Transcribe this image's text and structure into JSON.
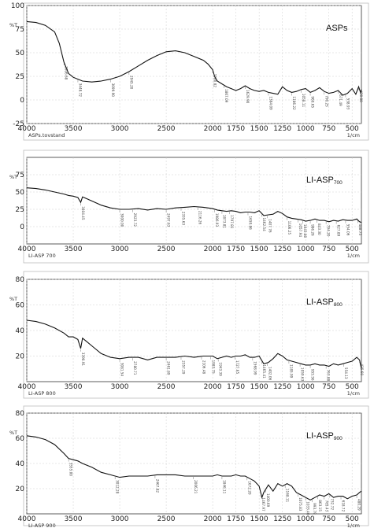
{
  "chart_data": [
    {
      "type": "line",
      "title": "ASPs",
      "title_main": "ASPs",
      "title_sub": "",
      "ylabel": "%T",
      "xunit": "1/cm",
      "sample_label": "ASPs.tovstand",
      "xlim": [
        4000,
        400
      ],
      "ylim": [
        -25,
        100
      ],
      "xticks": [
        4000,
        3500,
        3000,
        2500,
        2000,
        1750,
        1500,
        1250,
        1000,
        750,
        500
      ],
      "yticks": [
        -25,
        0,
        25,
        50,
        75,
        100
      ],
      "series": [
        {
          "name": "ASPs",
          "x": [
            4000,
            3900,
            3800,
            3700,
            3650,
            3600,
            3550,
            3500,
            3450,
            3400,
            3300,
            3200,
            3100,
            3000,
            2900,
            2800,
            2700,
            2600,
            2500,
            2400,
            2300,
            2200,
            2100,
            2050,
            2000,
            1980,
            1950,
            1900,
            1850,
            1800,
            1750,
            1700,
            1650,
            1600,
            1550,
            1500,
            1450,
            1400,
            1350,
            1300,
            1250,
            1200,
            1150,
            1100,
            1050,
            1000,
            950,
            900,
            850,
            800,
            750,
            700,
            650,
            600,
            550,
            500,
            460,
            430,
            410,
            400
          ],
          "y": [
            83,
            82,
            79,
            72,
            60,
            40,
            28,
            24,
            22,
            20,
            19,
            20,
            22,
            25,
            30,
            36,
            42,
            47,
            51,
            52,
            50,
            46,
            42,
            38,
            32,
            25,
            20,
            17,
            14,
            12,
            10,
            12,
            15,
            12,
            10,
            9,
            10,
            8,
            7,
            6,
            14,
            10,
            8,
            9,
            11,
            12,
            8,
            10,
            13,
            9,
            7,
            8,
            10,
            5,
            7,
            12,
            6,
            14,
            8,
            11
          ]
        }
      ],
      "peak_labels": [
        {
          "x": 3600,
          "text": "3606.68"
        },
        {
          "x": 3450,
          "text": "3448.72"
        },
        {
          "x": 3100,
          "text": "3099.90"
        },
        {
          "x": 2900,
          "text": "2945.20"
        },
        {
          "x": 2000,
          "text": "1980.82"
        },
        {
          "x": 1880,
          "text": "1867.09"
        },
        {
          "x": 1650,
          "text": "1629.90"
        },
        {
          "x": 1400,
          "text": "1384.09"
        },
        {
          "x": 1150,
          "text": "1186.22"
        },
        {
          "x": 1050,
          "text": "1058.11"
        },
        {
          "x": 950,
          "text": "960.65"
        },
        {
          "x": 800,
          "text": "790.25"
        },
        {
          "x": 650,
          "text": "671.49"
        },
        {
          "x": 570,
          "text": "538.93"
        },
        {
          "x": 430,
          "text": "430.88"
        }
      ]
    },
    {
      "type": "line",
      "title": "LI-ASP700",
      "title_main": "LI-ASP",
      "title_sub": "700",
      "ylabel": "%T",
      "xunit": "1/cm",
      "sample_label": "LI-ASP 700",
      "xlim": [
        4000,
        400
      ],
      "ylim": [
        -25,
        100
      ],
      "xticks": [
        4000,
        3500,
        3000,
        2500,
        2000,
        1750,
        1500,
        1250,
        1000,
        750,
        500
      ],
      "yticks": [
        0,
        25,
        50,
        75
      ],
      "series": [
        {
          "name": "LI-ASP700",
          "x": [
            4000,
            3900,
            3800,
            3700,
            3600,
            3550,
            3500,
            3450,
            3420,
            3400,
            3350,
            3300,
            3200,
            3100,
            3000,
            2900,
            2800,
            2700,
            2600,
            2500,
            2400,
            2300,
            2200,
            2100,
            2000,
            1950,
            1900,
            1850,
            1800,
            1750,
            1700,
            1650,
            1600,
            1550,
            1500,
            1450,
            1400,
            1350,
            1300,
            1250,
            1200,
            1150,
            1100,
            1050,
            1000,
            950,
            900,
            850,
            800,
            750,
            700,
            650,
            600,
            550,
            500,
            450,
            420,
            400
          ],
          "y": [
            56,
            55,
            53,
            50,
            47,
            45,
            44,
            42,
            35,
            43,
            40,
            37,
            31,
            27,
            25,
            25,
            26,
            24,
            26,
            25,
            27,
            28,
            29,
            28,
            26,
            24,
            23,
            22,
            23,
            22,
            20,
            21,
            21,
            20,
            23,
            16,
            17,
            18,
            22,
            19,
            14,
            12,
            11,
            10,
            8,
            9,
            11,
            9,
            9,
            7,
            9,
            8,
            10,
            9,
            9,
            11,
            7,
            6
          ]
        }
      ],
      "peak_labels": [
        {
          "x": 3420,
          "text": "3404.45"
        },
        {
          "x": 3000,
          "text": "3000.00"
        },
        {
          "x": 2860,
          "text": "2923.72"
        },
        {
          "x": 2500,
          "text": "2497.63"
        },
        {
          "x": 2340,
          "text": "2335.63"
        },
        {
          "x": 2160,
          "text": "2116.26"
        },
        {
          "x": 1980,
          "text": "1986.93"
        },
        {
          "x": 1900,
          "text": "1873.81"
        },
        {
          "x": 1820,
          "text": "1797.81"
        },
        {
          "x": 1620,
          "text": "1659.86"
        },
        {
          "x": 1470,
          "text": "1462.54"
        },
        {
          "x": 1410,
          "text": "1407.76"
        },
        {
          "x": 1200,
          "text": "1106.25"
        },
        {
          "x": 1080,
          "text": "1057.94"
        },
        {
          "x": 1030,
          "text": "1043.80"
        },
        {
          "x": 950,
          "text": "986.26"
        },
        {
          "x": 880,
          "text": "843.30"
        },
        {
          "x": 780,
          "text": "794.20"
        },
        {
          "x": 670,
          "text": "627.89"
        },
        {
          "x": 570,
          "text": "554.06"
        },
        {
          "x": 440,
          "text": "488.75"
        }
      ]
    },
    {
      "type": "line",
      "title": "LI-ASP800",
      "title_main": "LI-ASP",
      "title_sub": "800",
      "ylabel": "%T",
      "xunit": "1/cm",
      "sample_label": "LI-ASP 800",
      "xlim": [
        4000,
        400
      ],
      "ylim": [
        0,
        80
      ],
      "xticks": [
        4000,
        3500,
        3000,
        2500,
        2000,
        1750,
        1500,
        1250,
        1000,
        750,
        500
      ],
      "yticks": [
        20,
        40,
        60,
        80
      ],
      "series": [
        {
          "name": "LI-ASP800",
          "x": [
            4000,
            3900,
            3800,
            3700,
            3600,
            3550,
            3500,
            3450,
            3420,
            3400,
            3350,
            3300,
            3200,
            3100,
            3000,
            2900,
            2800,
            2700,
            2600,
            2500,
            2400,
            2300,
            2200,
            2100,
            2000,
            1950,
            1900,
            1850,
            1800,
            1750,
            1700,
            1650,
            1600,
            1550,
            1500,
            1450,
            1400,
            1350,
            1300,
            1250,
            1200,
            1150,
            1100,
            1050,
            1000,
            950,
            900,
            850,
            800,
            750,
            700,
            650,
            600,
            550,
            500,
            450,
            420,
            400
          ],
          "y": [
            48,
            47,
            45,
            42,
            38,
            35,
            35,
            33,
            26,
            34,
            31,
            28,
            22,
            19,
            18,
            19,
            19,
            17,
            19,
            19,
            19,
            20,
            19,
            20,
            20,
            18,
            19,
            20,
            19,
            20,
            20,
            21,
            19,
            19,
            20,
            14,
            15,
            18,
            22,
            20,
            17,
            16,
            15,
            14,
            13,
            13,
            14,
            13,
            13,
            12,
            14,
            13,
            14,
            15,
            16,
            19,
            17,
            10
          ]
        }
      ],
      "peak_labels": [
        {
          "x": 3420,
          "text": "3390.91"
        },
        {
          "x": 3000,
          "text": "3081.54"
        },
        {
          "x": 2860,
          "text": "2780.71"
        },
        {
          "x": 2500,
          "text": "2461.89"
        },
        {
          "x": 2340,
          "text": "2357.29"
        },
        {
          "x": 2120,
          "text": "2106.48"
        },
        {
          "x": 2020,
          "text": "1983.75"
        },
        {
          "x": 1940,
          "text": "1943.39"
        },
        {
          "x": 1760,
          "text": "1727.65"
        },
        {
          "x": 1570,
          "text": "1568.99"
        },
        {
          "x": 1470,
          "text": "1465.41"
        },
        {
          "x": 1410,
          "text": "1402.06"
        },
        {
          "x": 1180,
          "text": "1185.99"
        },
        {
          "x": 1060,
          "text": "1059.63"
        },
        {
          "x": 950,
          "text": "955.56"
        },
        {
          "x": 780,
          "text": "763.88"
        },
        {
          "x": 590,
          "text": "554.13"
        },
        {
          "x": 420,
          "text": "435.60"
        }
      ]
    },
    {
      "type": "line",
      "title": "LI-ASP900",
      "title_main": "LI-ASP",
      "title_sub": "900",
      "ylabel": "%T",
      "xunit": "1/cm",
      "sample_label": "LI-ASP 900",
      "xlim": [
        4000,
        400
      ],
      "ylim": [
        0,
        80
      ],
      "xticks": [
        4000,
        3500,
        3000,
        2500,
        2000,
        1750,
        1500,
        1250,
        1000,
        750,
        500
      ],
      "yticks": [
        20,
        40,
        60,
        80
      ],
      "series": [
        {
          "name": "LI-ASP900",
          "x": [
            4000,
            3900,
            3800,
            3700,
            3600,
            3550,
            3500,
            3450,
            3400,
            3300,
            3200,
            3100,
            3000,
            2900,
            2800,
            2700,
            2600,
            2500,
            2400,
            2300,
            2200,
            2100,
            2000,
            1950,
            1900,
            1850,
            1800,
            1750,
            1700,
            1650,
            1600,
            1550,
            1500,
            1470,
            1450,
            1400,
            1350,
            1300,
            1250,
            1200,
            1150,
            1100,
            1050,
            1000,
            950,
            900,
            850,
            800,
            750,
            700,
            650,
            600,
            550,
            500,
            450,
            420,
            400
          ],
          "y": [
            62,
            61,
            59,
            55,
            48,
            44,
            43,
            42,
            40,
            37,
            33,
            31,
            29,
            30,
            30,
            30,
            31,
            31,
            31,
            30,
            30,
            30,
            30,
            31,
            30,
            30,
            30,
            31,
            30,
            30,
            28,
            26,
            22,
            13,
            17,
            23,
            18,
            24,
            22,
            24,
            22,
            17,
            15,
            13,
            11,
            13,
            15,
            14,
            16,
            13,
            14,
            14,
            12,
            14,
            15,
            17,
            18
          ]
        }
      ],
      "peak_labels": [
        {
          "x": 3550,
          "text": "3555.00"
        },
        {
          "x": 3050,
          "text": "3012.28"
        },
        {
          "x": 2620,
          "text": "2467.82"
        },
        {
          "x": 2210,
          "text": "2006.21"
        },
        {
          "x": 1900,
          "text": "1846.11"
        },
        {
          "x": 1630,
          "text": "1672.20"
        },
        {
          "x": 1480,
          "text": "1467.97"
        },
        {
          "x": 1430,
          "text": "1400.69"
        },
        {
          "x": 1220,
          "text": "1168.11"
        },
        {
          "x": 1080,
          "text": "1075.83"
        },
        {
          "x": 1000,
          "text": "1033.40"
        },
        {
          "x": 930,
          "text": "993.79"
        },
        {
          "x": 870,
          "text": "863.15"
        },
        {
          "x": 800,
          "text": "765.43"
        },
        {
          "x": 740,
          "text": "732.72"
        },
        {
          "x": 620,
          "text": "618.72"
        },
        {
          "x": 450,
          "text": "480.29"
        }
      ]
    }
  ]
}
